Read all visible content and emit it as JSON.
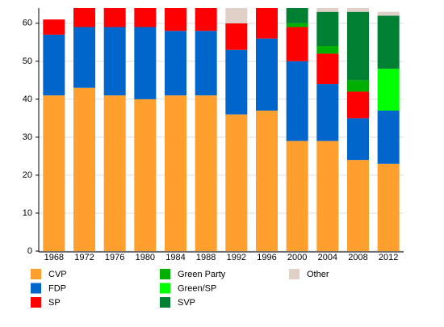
{
  "chart_data": {
    "type": "stacked_bar",
    "categories": [
      "1968",
      "1972",
      "1976",
      "1980",
      "1984",
      "1988",
      "1992",
      "1996",
      "2000",
      "2004",
      "2008",
      "2012"
    ],
    "series": [
      {
        "name": "CVP",
        "color": "#ff9f2e",
        "values": [
          41,
          43,
          41,
          40,
          41,
          41,
          36,
          37,
          29,
          29,
          24,
          23
        ]
      },
      {
        "name": "FDP",
        "color": "#0066cc",
        "values": [
          16,
          16,
          18,
          19,
          17,
          17,
          17,
          19,
          21,
          15,
          11,
          14
        ]
      },
      {
        "name": "SP",
        "color": "#ff0000",
        "values": [
          4,
          5,
          5,
          5,
          6,
          6,
          7,
          8,
          9,
          8,
          7,
          0
        ]
      },
      {
        "name": "Green Party",
        "color": "#00b000",
        "values": [
          0,
          0,
          0,
          0,
          0,
          0,
          0,
          0,
          1,
          2,
          3,
          0
        ]
      },
      {
        "name": "Green/SP",
        "color": "#00ff00",
        "values": [
          0,
          0,
          0,
          0,
          0,
          0,
          0,
          0,
          0,
          0,
          0,
          11
        ]
      },
      {
        "name": "SVP",
        "color": "#008033",
        "values": [
          0,
          0,
          0,
          0,
          0,
          0,
          0,
          0,
          4,
          9,
          18,
          14
        ]
      },
      {
        "name": "Other",
        "color": "#e0d0c8",
        "values": [
          0,
          0,
          0,
          0,
          0,
          0,
          4,
          0,
          0,
          1,
          1,
          1
        ]
      }
    ],
    "ylim": [
      0,
      64
    ],
    "yticks": [
      0,
      10,
      20,
      30,
      40,
      50,
      60
    ],
    "grid": true
  }
}
